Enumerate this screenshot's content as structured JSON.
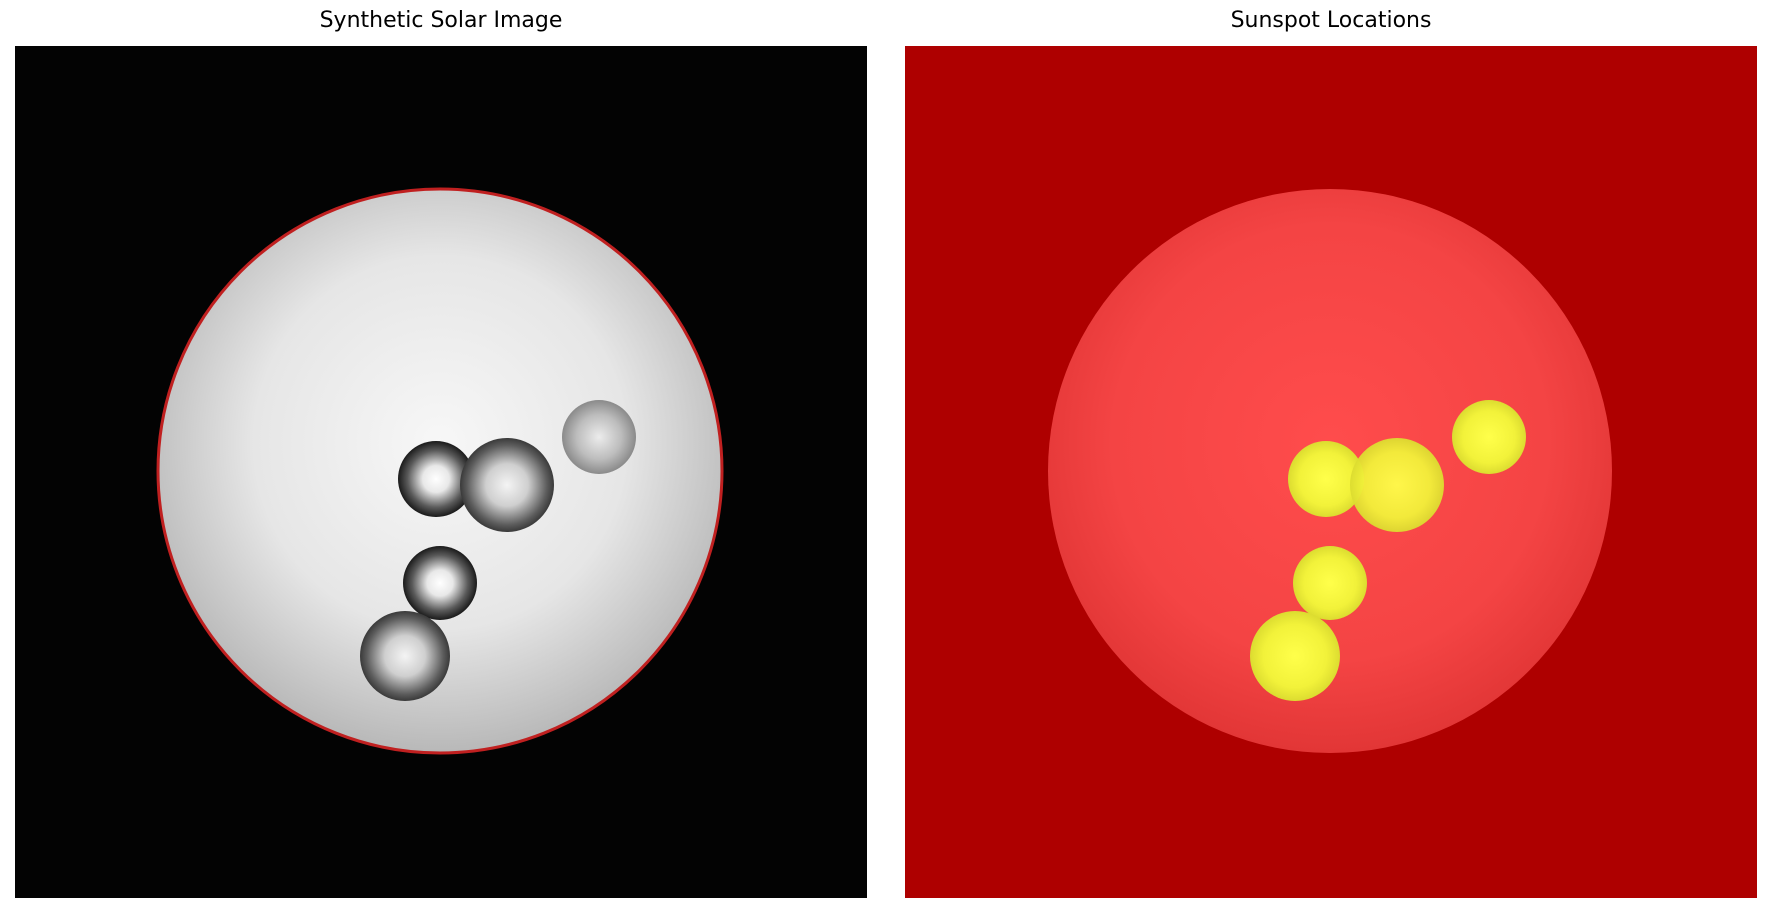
{
  "figure": {
    "panels": [
      {
        "id": "left",
        "title": "Synthetic Solar Image",
        "colors": {
          "background": "#030303",
          "disk_center": "#f5f5f5",
          "disk_edge": "#bcbcbc",
          "limb_outline": "#c02020"
        }
      },
      {
        "id": "right",
        "title": "Sunspot Locations",
        "colors": {
          "background": "#ae0000",
          "disk_center": "#ff4c4c",
          "disk_edge": "#e83838",
          "spot": "#f4f43a"
        }
      }
    ],
    "sunspot_count": 5
  }
}
